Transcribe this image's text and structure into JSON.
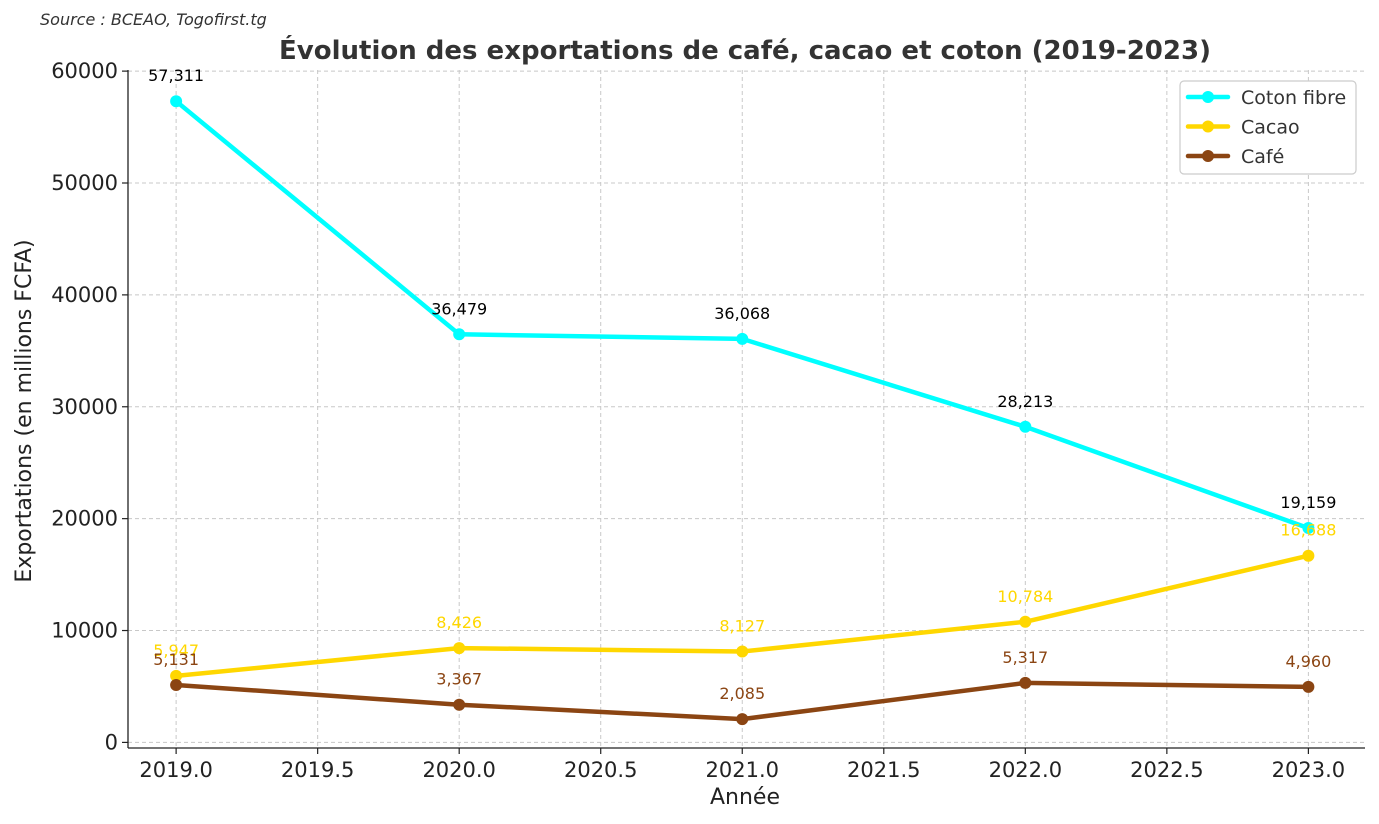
{
  "source": "Source : BCEAO, Togofirst.tg",
  "chart_data": {
    "type": "line",
    "title": "Évolution des exportations de café, cacao et coton (2019-2023)",
    "xlabel": "Année",
    "ylabel": "Exportations (en millions FCFA)",
    "x": [
      2019,
      2020,
      2021,
      2022,
      2023
    ],
    "xlim": [
      2018.83,
      2023.2
    ],
    "ylim": [
      -500,
      60100
    ],
    "x_ticks": [
      "2019.0",
      "2019.5",
      "2020.0",
      "2020.5",
      "2021.0",
      "2021.5",
      "2022.0",
      "2022.5",
      "2023.0"
    ],
    "y_ticks": [
      "0",
      "10000",
      "20000",
      "30000",
      "40000",
      "50000",
      "60000"
    ],
    "grid": true,
    "legend_position": "top-right",
    "series": [
      {
        "name": "Coton fibre",
        "color": "#00FFFF",
        "label_color": "#000000",
        "values": [
          57311,
          36479,
          36068,
          28213,
          19159
        ],
        "labels": [
          "57,311",
          "36,479",
          "36,068",
          "28,213",
          "19,159"
        ]
      },
      {
        "name": "Cacao",
        "color": "#FFD700",
        "label_color": "#FFD700",
        "values": [
          5947,
          8426,
          8127,
          10784,
          16688
        ],
        "labels": [
          "5,947",
          "8,426",
          "8,127",
          "10,784",
          "16,688"
        ]
      },
      {
        "name": "Café",
        "color": "#8B4513",
        "label_color": "#8B4513",
        "values": [
          5131,
          3367,
          2085,
          5317,
          4960
        ],
        "labels": [
          "5,131",
          "3,367",
          "2,085",
          "5,317",
          "4,960"
        ]
      }
    ]
  }
}
